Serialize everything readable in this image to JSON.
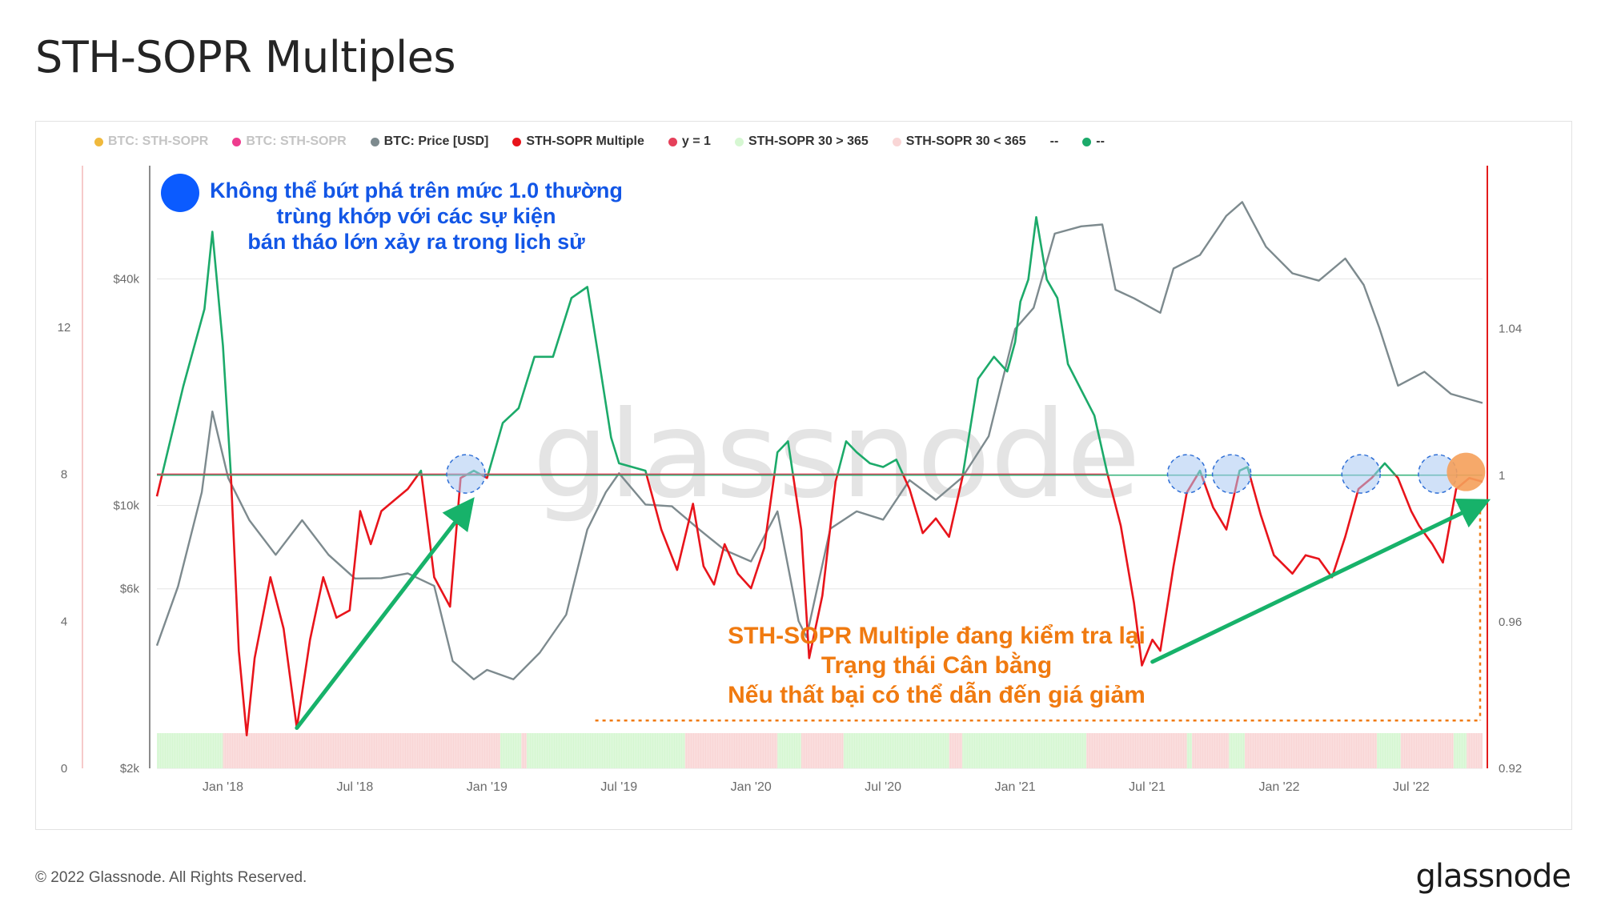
{
  "page": {
    "title": "STH-SOPR Multiples"
  },
  "legend": [
    {
      "label": "BTC: STH-SOPR",
      "color": "#f0b93c",
      "muted": true
    },
    {
      "label": "BTC: STH-SOPR",
      "color": "#ee3c8e",
      "muted": true
    },
    {
      "label": "BTC: Price [USD]",
      "color": "#7d8a8e",
      "muted": false
    },
    {
      "label": "STH-SOPR Multiple",
      "color": "#e8141b",
      "muted": false
    },
    {
      "label": "y = 1",
      "color": "#e5405a",
      "muted": false
    },
    {
      "label": "STH-SOPR 30 > 365",
      "color": "#d6f7d2",
      "muted": false
    },
    {
      "label": "STH-SOPR 30 < 365",
      "color": "#f9d6d6",
      "muted": false
    },
    {
      "label": "--",
      "color": null,
      "muted": false
    },
    {
      "label": "--",
      "color": "#1caa6a",
      "muted": false
    }
  ],
  "annotations": {
    "blue_lines": [
      "Không thể bứt phá trên mức 1.0 thường",
      "trùng khớp với các sự kiện",
      "bán tháo lớn xảy ra trong lịch sử"
    ],
    "orange_lines": [
      "STH-SOPR Multiple đang kiểm tra lại",
      "Trạng thái Cân bằng",
      "Nếu thất bại có thể dẫn đến giá giảm"
    ]
  },
  "footer": {
    "copyright": "© 2022 Glassnode. All Rights Reserved.",
    "brand": "glassnode",
    "watermark": "glassnode"
  },
  "colors": {
    "price": "#7d8a8e",
    "multiple_below": "#e8141b",
    "multiple_above": "#1caa6a",
    "y1": "#e5405a",
    "band_up": "#d6f7d2",
    "band_down": "#f9d6d6",
    "arrow": "#17b26a",
    "circle_blue": "#a9c8f3",
    "circle_orange": "#f5a05a",
    "axis_right": "#e31b1b",
    "axis_left": "#f4b8b8"
  },
  "chart_data": {
    "type": "line",
    "title": "STH-SOPR Multiples",
    "x_ticks": [
      "Jan '18",
      "Jul '18",
      "Jan '19",
      "Jul '19",
      "Jan '20",
      "Jul '20",
      "Jan '21",
      "Jul '21",
      "Jan '22",
      "Jul '22"
    ],
    "x_tick_dates": [
      2018.0,
      2018.5,
      2019.0,
      2019.5,
      2020.0,
      2020.5,
      2021.0,
      2021.5,
      2022.0,
      2022.5
    ],
    "x_range": [
      2017.75,
      2022.77
    ],
    "axes": {
      "multiple": {
        "ticks": [
          "0",
          "4",
          "8",
          "12"
        ],
        "tick_values": [
          0,
          4,
          8,
          12
        ],
        "range": [
          0,
          16.4
        ]
      },
      "price": {
        "ticks": [
          "$2k",
          "$6k",
          "$10k",
          "$40k"
        ],
        "tick_values": [
          2000,
          6000,
          10000,
          40000
        ],
        "scale": "log",
        "range": [
          2000,
          80000
        ]
      },
      "sopr": {
        "ticks": [
          "0.92",
          "0.96",
          "1",
          "1.04"
        ],
        "tick_values": [
          0.92,
          0.96,
          1.0,
          1.04
        ],
        "range": [
          0.92,
          1.0845
        ]
      }
    },
    "series": [
      {
        "name": "BTC: Price [USD]",
        "x": [
          2017.75,
          2017.83,
          2017.92,
          2017.96,
          2018.02,
          2018.1,
          2018.2,
          2018.3,
          2018.4,
          2018.5,
          2018.6,
          2018.7,
          2018.8,
          2018.87,
          2018.95,
          2019.0,
          2019.1,
          2019.2,
          2019.3,
          2019.38,
          2019.45,
          2019.5,
          2019.6,
          2019.7,
          2019.8,
          2019.9,
          2020.0,
          2020.1,
          2020.18,
          2020.21,
          2020.3,
          2020.4,
          2020.5,
          2020.6,
          2020.7,
          2020.8,
          2020.9,
          2021.0,
          2021.07,
          2021.15,
          2021.25,
          2021.33,
          2021.38,
          2021.45,
          2021.55,
          2021.6,
          2021.7,
          2021.8,
          2021.86,
          2021.95,
          2022.05,
          2022.15,
          2022.25,
          2022.32,
          2022.38,
          2022.45,
          2022.55,
          2022.65,
          2022.77
        ],
        "values": [
          4300,
          6000,
          11000,
          17500,
          12000,
          9000,
          7500,
          9000,
          7500,
          6300,
          6500,
          6500,
          6200,
          3800,
          3500,
          3600,
          3500,
          4000,
          5200,
          8500,
          11000,
          12000,
          10200,
          9800,
          8800,
          7500,
          7200,
          9500,
          5000,
          4400,
          8800,
          9500,
          9300,
          11500,
          10500,
          11700,
          15500,
          29000,
          34000,
          52000,
          56000,
          55000,
          38000,
          35000,
          33000,
          42000,
          47000,
          58000,
          65000,
          48000,
          42000,
          39000,
          46000,
          38000,
          30000,
          20500,
          23000,
          19500,
          19000
        ]
      },
      {
        "name": "STH-SOPR Multiple",
        "x": [
          2017.75,
          2017.85,
          2017.93,
          2017.96,
          2018.0,
          2018.03,
          2018.06,
          2018.09,
          2018.12,
          2018.18,
          2018.23,
          2018.28,
          2018.33,
          2018.38,
          2018.43,
          2018.48,
          2018.52,
          2018.56,
          2018.6,
          2018.65,
          2018.7,
          2018.75,
          2018.8,
          2018.86,
          2018.9,
          2018.95,
          2019.0,
          2019.06,
          2019.12,
          2019.18,
          2019.25,
          2019.32,
          2019.38,
          2019.42,
          2019.47,
          2019.5,
          2019.55,
          2019.6,
          2019.66,
          2019.72,
          2019.78,
          2019.82,
          2019.86,
          2019.9,
          2019.95,
          2020.0,
          2020.05,
          2020.1,
          2020.14,
          2020.19,
          2020.22,
          2020.27,
          2020.32,
          2020.36,
          2020.4,
          2020.45,
          2020.5,
          2020.55,
          2020.6,
          2020.65,
          2020.7,
          2020.75,
          2020.8,
          2020.86,
          2020.92,
          2020.97,
          2021.0,
          2021.02,
          2021.05,
          2021.08,
          2021.12,
          2021.16,
          2021.2,
          2021.25,
          2021.3,
          2021.35,
          2021.4,
          2021.45,
          2021.48,
          2021.52,
          2021.55,
          2021.6,
          2021.65,
          2021.7,
          2021.75,
          2021.8,
          2021.85,
          2021.88,
          2021.93,
          2021.98,
          2022.05,
          2022.1,
          2022.15,
          2022.2,
          2022.25,
          2022.3,
          2022.35,
          2022.4,
          2022.45,
          2022.5,
          2022.53,
          2022.58,
          2022.62,
          2022.67,
          2022.72,
          2022.77
        ],
        "values": [
          7.4,
          10.4,
          12.5,
          14.6,
          11.5,
          8.0,
          3.2,
          0.9,
          3.0,
          5.2,
          3.8,
          1.1,
          3.5,
          5.2,
          4.1,
          4.3,
          7.0,
          6.1,
          7.0,
          7.3,
          7.6,
          8.1,
          5.2,
          4.4,
          7.9,
          8.1,
          7.9,
          9.4,
          9.8,
          11.2,
          11.2,
          12.8,
          13.1,
          11.3,
          9.0,
          8.3,
          8.2,
          8.1,
          6.5,
          5.4,
          7.2,
          5.5,
          5.0,
          6.1,
          5.3,
          4.9,
          6.0,
          8.6,
          8.9,
          6.5,
          3.0,
          4.7,
          7.8,
          8.9,
          8.6,
          8.3,
          8.2,
          8.4,
          7.6,
          6.4,
          6.8,
          6.3,
          7.9,
          10.6,
          11.2,
          10.8,
          11.6,
          12.7,
          13.3,
          15.0,
          13.3,
          12.8,
          11.0,
          10.3,
          9.6,
          8.0,
          6.6,
          4.5,
          2.8,
          3.5,
          3.2,
          5.5,
          7.5,
          8.1,
          7.1,
          6.5,
          8.1,
          8.2,
          6.9,
          5.8,
          5.3,
          5.8,
          5.7,
          5.2,
          6.3,
          7.6,
          7.9,
          8.3,
          7.9,
          7.0,
          6.6,
          6.1,
          5.6,
          7.6,
          7.9,
          7.8
        ]
      }
    ],
    "y1_level": 1.0,
    "regime_bands": [
      {
        "from": 2017.75,
        "to": 2018.0,
        "state": "30 > 365"
      },
      {
        "from": 2018.0,
        "to": 2019.05,
        "state": "30 < 365"
      },
      {
        "from": 2019.05,
        "to": 2019.13,
        "state": "30 > 365"
      },
      {
        "from": 2019.13,
        "to": 2019.15,
        "state": "30 < 365"
      },
      {
        "from": 2019.15,
        "to": 2019.75,
        "state": "30 > 365"
      },
      {
        "from": 2019.75,
        "to": 2020.1,
        "state": "30 < 365"
      },
      {
        "from": 2020.1,
        "to": 2020.19,
        "state": "30 > 365"
      },
      {
        "from": 2020.19,
        "to": 2020.35,
        "state": "30 < 365"
      },
      {
        "from": 2020.35,
        "to": 2020.75,
        "state": "30 > 365"
      },
      {
        "from": 2020.75,
        "to": 2020.8,
        "state": "30 < 365"
      },
      {
        "from": 2020.8,
        "to": 2021.27,
        "state": "30 > 365"
      },
      {
        "from": 2021.27,
        "to": 2021.65,
        "state": "30 < 365"
      },
      {
        "from": 2021.65,
        "to": 2021.67,
        "state": "30 > 365"
      },
      {
        "from": 2021.67,
        "to": 2021.81,
        "state": "30 < 365"
      },
      {
        "from": 2021.81,
        "to": 2021.87,
        "state": "30 > 365"
      },
      {
        "from": 2021.87,
        "to": 2022.37,
        "state": "30 < 365"
      },
      {
        "from": 2022.37,
        "to": 2022.46,
        "state": "30 > 365"
      },
      {
        "from": 2022.46,
        "to": 2022.66,
        "state": "30 < 365"
      },
      {
        "from": 2022.66,
        "to": 2022.71,
        "state": "30 > 365"
      },
      {
        "from": 2022.71,
        "to": 2022.77,
        "state": "30 < 365"
      }
    ],
    "highlight_circles": [
      {
        "x": 2018.92,
        "y": 8.1,
        "kind": "rejection"
      },
      {
        "x": 2021.65,
        "y": 8.1,
        "kind": "rejection"
      },
      {
        "x": 2021.82,
        "y": 8.1,
        "kind": "rejection"
      },
      {
        "x": 2022.31,
        "y": 8.1,
        "kind": "rejection"
      },
      {
        "x": 2022.6,
        "y": 8.1,
        "kind": "rejection"
      },
      {
        "x": 2022.75,
        "y": 8.0,
        "kind": "retest"
      }
    ],
    "trend_arrows": [
      {
        "from": [
          2018.28,
          1.1
        ],
        "to": [
          2018.94,
          7.1
        ]
      },
      {
        "from": [
          2021.52,
          2.9
        ],
        "to": [
          2022.77,
          7.2
        ]
      }
    ],
    "dotted_guides": {
      "vertical_x": 2022.77,
      "vertical_from": 7.0,
      "vertical_to": 1.3,
      "horizontal_y": 1.3,
      "horizontal_from": 2019.41,
      "horizontal_to": 2022.77
    }
  }
}
